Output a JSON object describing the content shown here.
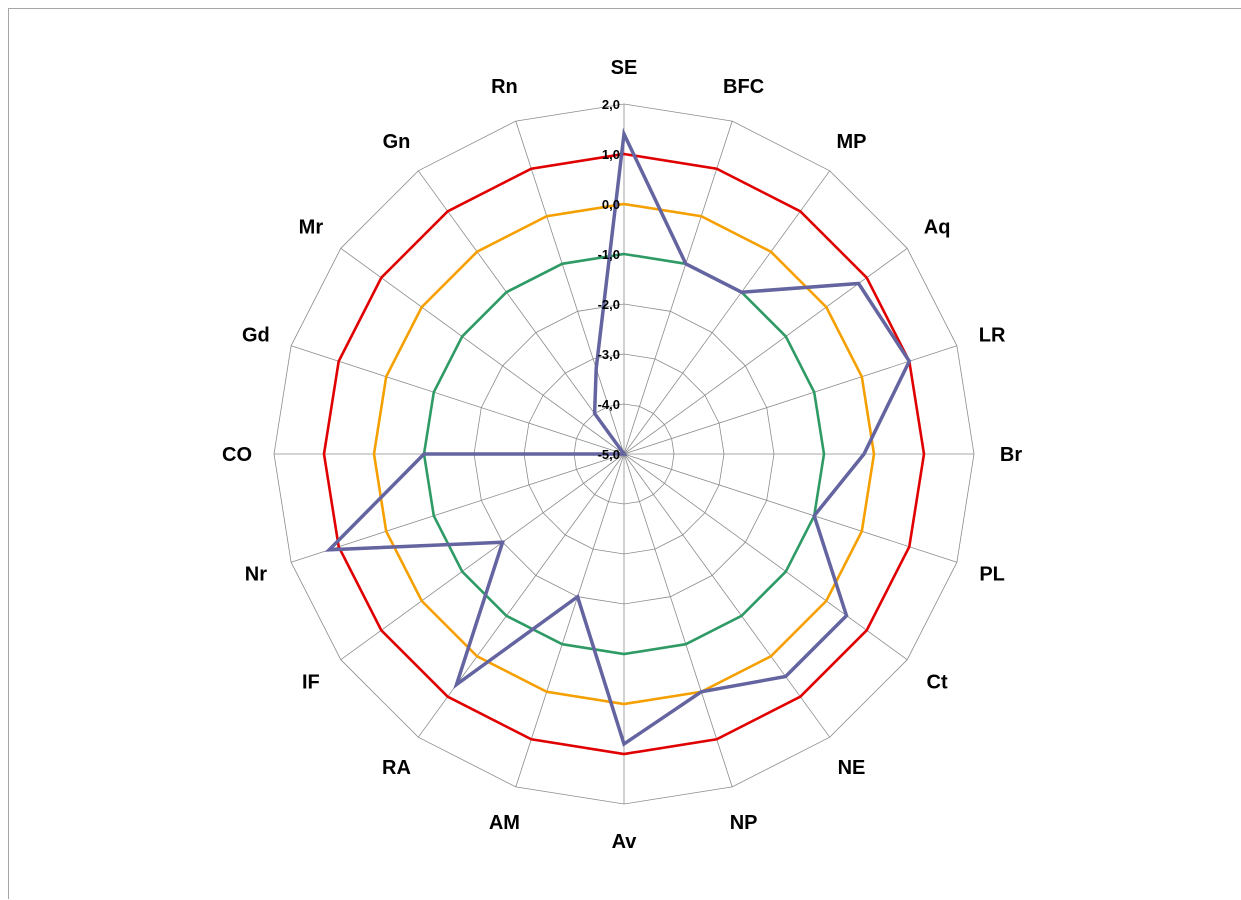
{
  "chart_data": {
    "type": "radar",
    "categories": [
      "SE",
      "BFC",
      "MP",
      "Aq",
      "LR",
      "Br",
      "PL",
      "Ct",
      "NE",
      "NP",
      "Av",
      "AM",
      "RA",
      "IF",
      "Nr",
      "CO",
      "Gd",
      "Mr",
      "Gn",
      "Rn"
    ],
    "radial_ticks": [
      "-5,0",
      "-4,0",
      "-3,0",
      "-2,0",
      "-1,0",
      "0,0",
      "1,0",
      "2,0"
    ],
    "rlim": [
      -5,
      2
    ],
    "grid": true,
    "series": [
      {
        "values": [
          1.4,
          -1.0,
          -1.0,
          0.8,
          1.0,
          -0.2,
          -1.0,
          0.5,
          0.5,
          0.0,
          0.8,
          -2.0,
          0.7,
          -2.0,
          1.2,
          -1.0,
          -5.0,
          -5.0,
          -4.0,
          -3.2
        ],
        "color": "#6464a0"
      },
      {
        "values": [
          1.0,
          1.0,
          1.0,
          1.0,
          1.0,
          1.0,
          1.0,
          1.0,
          1.0,
          1.0,
          1.0,
          1.0,
          1.0,
          1.0,
          1.0,
          1.0,
          1.0,
          1.0,
          1.0,
          1.0
        ],
        "color": "#e00000"
      },
      {
        "values": [
          0.0,
          0.0,
          0.0,
          0.0,
          0.0,
          0.0,
          0.0,
          0.0,
          0.0,
          0.0,
          0.0,
          0.0,
          0.0,
          0.0,
          0.0,
          0.0,
          0.0,
          0.0,
          0.0,
          0.0
        ],
        "color": "#f5a000"
      },
      {
        "values": [
          -1.0,
          -1.0,
          -1.0,
          -1.0,
          -1.0,
          -1.0,
          -1.0,
          -1.0,
          -1.0,
          -1.0,
          -1.0,
          -1.0,
          -1.0,
          -1.0,
          -1.0,
          -1.0,
          -1.0,
          -1.0,
          -1.0,
          -1.0
        ],
        "color": "#2e9a64"
      }
    ],
    "grid_color": "#8c8c8c"
  }
}
